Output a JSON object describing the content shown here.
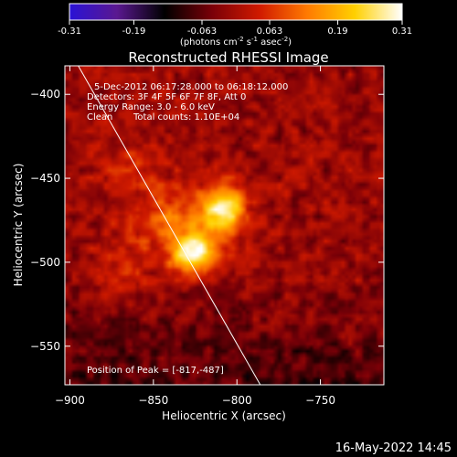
{
  "colorbar": {
    "ticks": [
      "-0.31",
      "-0.19",
      "-0.063",
      "0.063",
      "0.19",
      "0.31"
    ],
    "tick_values": [
      -0.31,
      -0.19,
      -0.063,
      0.063,
      0.19,
      0.31
    ],
    "range": [
      -0.31,
      0.31
    ],
    "unit_parts": {
      "open": "(photons cm",
      "exp1": "-2",
      "s": " s",
      "exp2": "-1",
      "asec": " asec",
      "exp3": "-2",
      "close": ")"
    },
    "colors": [
      "#2a12d6",
      "#5a1890",
      "#000000",
      "#7a0008",
      "#d01a00",
      "#ff7a00",
      "#ffd000",
      "#ffffff"
    ]
  },
  "chart_data": {
    "type": "heatmap",
    "title": "Reconstructed RHESSI Image",
    "xlabel": "Heliocentric X (arcsec)",
    "ylabel": "Heliocentric Y (arcsec)",
    "xlim": [
      -903,
      -712
    ],
    "ylim": [
      -573,
      -383
    ],
    "xticks": [
      -900,
      -850,
      -800,
      -750
    ],
    "yticks": [
      -400,
      -450,
      -500,
      -550
    ],
    "peak": {
      "x": -817,
      "y": -487
    },
    "limb_line": [
      [
        -895,
        -383
      ],
      [
        -786,
        -573
      ]
    ],
    "sources": [
      {
        "x": -825,
        "y": -495,
        "sx": 10,
        "sy": 8,
        "amp": 0.31
      },
      {
        "x": -808,
        "y": -468,
        "sx": 9,
        "sy": 10,
        "amp": 0.27
      },
      {
        "x": -838,
        "y": -474,
        "sx": 18,
        "sy": 13,
        "amp": 0.13
      },
      {
        "x": -862,
        "y": -442,
        "sx": 14,
        "sy": 10,
        "amp": 0.07
      },
      {
        "x": -870,
        "y": -508,
        "sx": 12,
        "sy": 12,
        "amp": 0.06
      }
    ]
  },
  "annotations": {
    "time_range": "5-Dec-2012 06:17:28.000 to 06:18:12.000",
    "detectors": "Detectors: 3F 4F 5F 6F 7F 8F, Att 0",
    "energy": "Energy Range: 3.0 - 6.0 keV",
    "method": "Clean",
    "counts": "Total counts: 1.10E+04",
    "peak_text": "Position of Peak = [-817,-487]"
  },
  "footer": {
    "timestamp": "16-May-2022 14:45"
  }
}
